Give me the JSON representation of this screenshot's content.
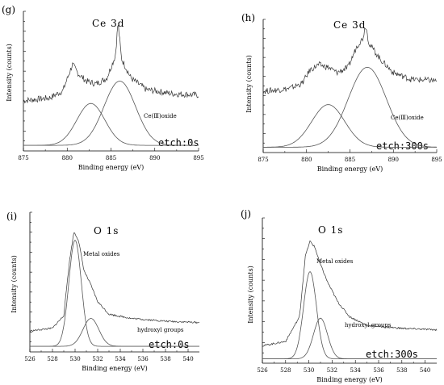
{
  "chart_data": [
    {
      "panel": "(g)",
      "type": "line",
      "title": "Ce 3d",
      "etch": "etch:0s",
      "xlabel": "Binding energy (eV)",
      "ylabel": "Intensity (counts)",
      "xlim": [
        875,
        895
      ],
      "xticks": [
        875,
        880,
        885,
        890,
        895
      ],
      "annotations": [
        "Ce(Ⅲ)oxide"
      ],
      "components": [
        {
          "center": 882.7,
          "width": 1.6,
          "height": 0.3
        },
        {
          "center": 886.0,
          "width": 1.8,
          "height": 0.46
        }
      ],
      "envelope": [
        [
          875,
          0.36
        ],
        [
          878,
          0.38
        ],
        [
          879.5,
          0.43
        ],
        [
          880.6,
          0.62
        ],
        [
          881.3,
          0.55
        ],
        [
          882.2,
          0.5
        ],
        [
          883.3,
          0.48
        ],
        [
          884.5,
          0.52
        ],
        [
          885.5,
          0.68
        ],
        [
          885.8,
          0.92
        ],
        [
          886.2,
          0.66
        ],
        [
          887.3,
          0.52
        ],
        [
          889,
          0.44
        ],
        [
          892,
          0.41
        ],
        [
          895,
          0.4
        ]
      ]
    },
    {
      "panel": "(h)",
      "type": "line",
      "title": "Ce 3d",
      "etch": "etch:300s",
      "xlabel": "Binding energy (eV)",
      "ylabel": "Intensity (counts)",
      "xlim": [
        875,
        895
      ],
      "xticks": [
        875,
        880,
        885,
        890,
        895
      ],
      "annotations": [
        "Ce(Ⅲ)oxide"
      ],
      "components": [
        {
          "center": 882.5,
          "width": 1.9,
          "height": 0.32
        },
        {
          "center": 887.0,
          "width": 2.2,
          "height": 0.6
        }
      ],
      "envelope": [
        [
          875,
          0.46
        ],
        [
          878,
          0.48
        ],
        [
          879.5,
          0.52
        ],
        [
          880.4,
          0.62
        ],
        [
          881.4,
          0.66
        ],
        [
          882.5,
          0.64
        ],
        [
          883.5,
          0.6
        ],
        [
          884.8,
          0.64
        ],
        [
          885.8,
          0.8
        ],
        [
          886.5,
          0.86
        ],
        [
          886.8,
          0.96
        ],
        [
          887.2,
          0.82
        ],
        [
          888.5,
          0.7
        ],
        [
          890,
          0.6
        ],
        [
          892,
          0.55
        ],
        [
          895,
          0.54
        ]
      ]
    },
    {
      "panel": "(i)",
      "type": "line",
      "title": "O 1s",
      "etch": "etch:0s",
      "xlabel": "Binding energy (eV)",
      "ylabel": "Intensity (counts)",
      "xlim": [
        526,
        541
      ],
      "xticks": [
        526,
        528,
        530,
        532,
        534,
        536,
        538,
        540
      ],
      "annotations": [
        "Metal oxides",
        "hydroxyl groups"
      ],
      "components": [
        {
          "center": 530.0,
          "width": 0.55,
          "height": 0.76
        },
        {
          "center": 531.4,
          "width": 0.7,
          "height": 0.2
        }
      ],
      "envelope": [
        [
          526,
          0.15
        ],
        [
          528,
          0.17
        ],
        [
          529,
          0.26
        ],
        [
          529.5,
          0.65
        ],
        [
          529.9,
          0.86
        ],
        [
          530.3,
          0.8
        ],
        [
          530.8,
          0.58
        ],
        [
          531.4,
          0.48
        ],
        [
          532,
          0.36
        ],
        [
          533,
          0.27
        ],
        [
          535,
          0.24
        ],
        [
          538,
          0.22
        ],
        [
          541,
          0.21
        ]
      ]
    },
    {
      "panel": "(j)",
      "type": "line",
      "title": "O 1s",
      "etch": "etch:300s",
      "xlabel": "Binding energy (eV)",
      "ylabel": "Intensity (counts)",
      "xlim": [
        526,
        541
      ],
      "xticks": [
        526,
        528,
        530,
        532,
        534,
        536,
        538,
        540
      ],
      "annotations": [
        "Metal oxides",
        "hydroxyl groups"
      ],
      "components": [
        {
          "center": 530.1,
          "width": 0.55,
          "height": 0.6
        },
        {
          "center": 531.0,
          "width": 0.6,
          "height": 0.28
        }
      ],
      "envelope": [
        [
          526,
          0.12
        ],
        [
          528,
          0.15
        ],
        [
          529.2,
          0.32
        ],
        [
          529.7,
          0.74
        ],
        [
          530.1,
          0.84
        ],
        [
          530.5,
          0.8
        ],
        [
          531,
          0.68
        ],
        [
          531.6,
          0.56
        ],
        [
          532.5,
          0.42
        ],
        [
          533.5,
          0.32
        ],
        [
          535,
          0.26
        ],
        [
          538,
          0.24
        ],
        [
          541,
          0.23
        ]
      ]
    }
  ]
}
